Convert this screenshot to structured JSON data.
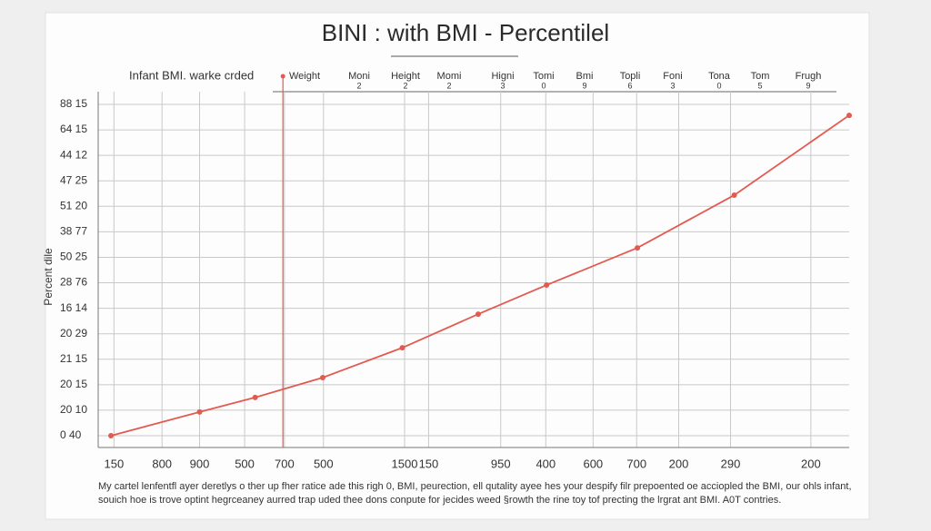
{
  "chart_data": {
    "type": "line",
    "title": "BINI : with BMI - Percentilel",
    "y_label": "Percent dile",
    "header_title": "Infant BMI. warke crded",
    "headers": [
      {
        "label": "Weight",
        "sub": null
      },
      {
        "label": "Moni",
        "sub": "2"
      },
      {
        "label": "Height",
        "sub": "2"
      },
      {
        "label": "Momi",
        "sub": "2"
      },
      {
        "label": "Higni",
        "sub": "3"
      },
      {
        "label": "Tomi",
        "sub": "0"
      },
      {
        "label": "Bmi",
        "sub": "9"
      },
      {
        "label": "Topli",
        "sub": "6"
      },
      {
        "label": "Foni",
        "sub": "3"
      },
      {
        "label": "Tona",
        "sub": "0"
      },
      {
        "label": "Tom",
        "sub": "5"
      },
      {
        "label": "Frugh",
        "sub": "9"
      }
    ],
    "caption": [
      "My cartel lenfentfl ayer deretlys o ther up fher ratice ade this righ 0, BMI, peurection, ell qutality ayee hes your despify filr prepoented oe acciopled the BMI, our ohls infant,",
      "souich hoe is trove optint hegrceaney aurred trap uded thee dons conpute for jecides weed §rowth the rine toy tof precting the lrgrat ant BMI. A0T contries."
    ],
    "xlim": [
      0,
      100
    ],
    "xticks": [
      {
        "value": 2.1,
        "label": "150"
      },
      {
        "value": 8.5,
        "label": "800"
      },
      {
        "value": 13.5,
        "label": "900"
      },
      {
        "value": 19.5,
        "label": "500"
      },
      {
        "value": 24.8,
        "label": "700"
      },
      {
        "value": 30,
        "label": "500"
      },
      {
        "value": 40.8,
        "label": "1500"
      },
      {
        "value": 44,
        "label": "150"
      },
      {
        "value": 53.6,
        "label": "950"
      },
      {
        "value": 59.6,
        "label": "400"
      },
      {
        "value": 65.9,
        "label": "600"
      },
      {
        "value": 71.7,
        "label": "700"
      },
      {
        "value": 77.3,
        "label": "200"
      },
      {
        "value": 84.2,
        "label": "290"
      },
      {
        "value": 94.9,
        "label": "200"
      }
    ],
    "ylim": [
      0,
      13.5
    ],
    "yticks": [
      {
        "value": 0,
        "label": "0 40"
      },
      {
        "value": 1,
        "label": "20 10"
      },
      {
        "value": 2,
        "label": "20 15"
      },
      {
        "value": 3,
        "label": "21 15"
      },
      {
        "value": 4,
        "label": "20 29"
      },
      {
        "value": 5,
        "label": "16 14"
      },
      {
        "value": 6,
        "label": "28 76"
      },
      {
        "value": 7,
        "label": "50 25"
      },
      {
        "value": 8,
        "label": "38 77"
      },
      {
        "value": 9,
        "label": "51 20"
      },
      {
        "value": 10,
        "label": "47 25"
      },
      {
        "value": 11,
        "label": "44 12"
      },
      {
        "value": 12,
        "label": "64 15"
      },
      {
        "value": 13,
        "label": "88 15"
      }
    ],
    "grid": true,
    "vline_x": 24.6,
    "series": [
      {
        "name": null,
        "color": "#e25a50",
        "x": [
          1.7,
          13.5,
          20.9,
          29.9,
          40.5,
          50.6,
          59.7,
          71.8,
          84.7,
          100
        ],
        "values": [
          0,
          0.93,
          1.5,
          2.28,
          3.45,
          4.77,
          5.91,
          7.37,
          9.44,
          12.57
        ]
      }
    ]
  }
}
